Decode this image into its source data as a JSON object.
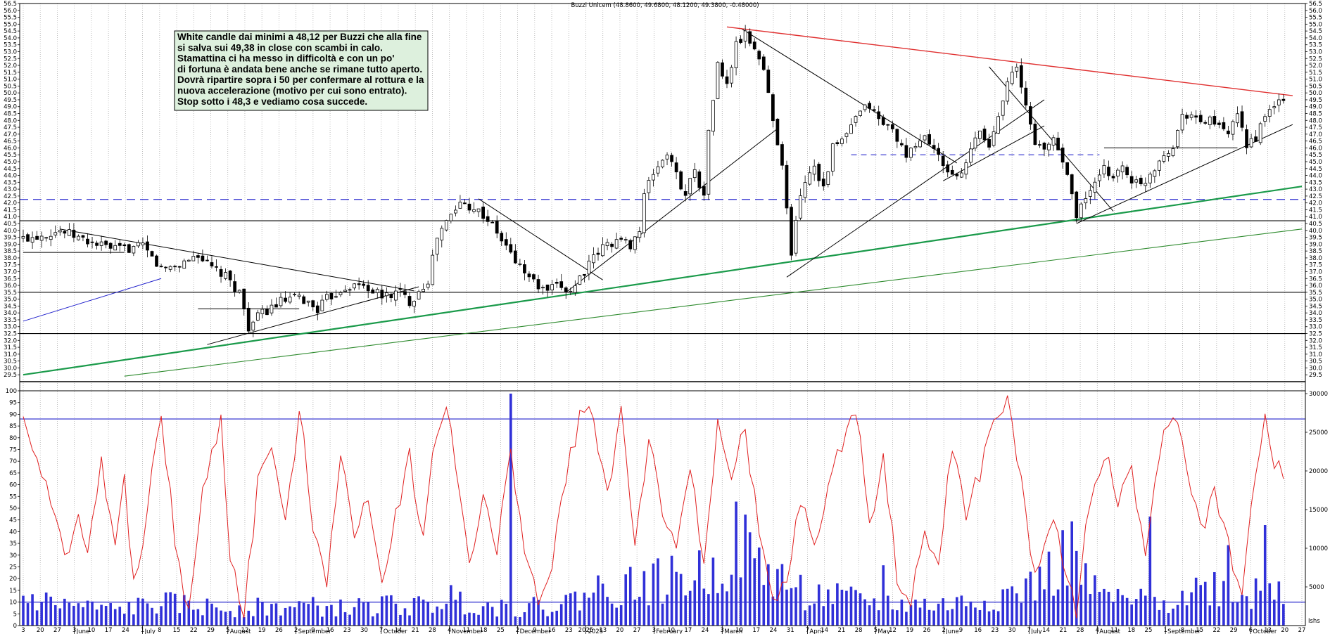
{
  "chart_data": {
    "type": "candlestick",
    "title": "Buzzi Unicem (48.8600, 49.6800, 48.1200, 49.3800, -0.48000)",
    "price_axis": {
      "ylim": [
        29.0,
        56.5
      ],
      "ticks": [
        "29.5",
        "30.0",
        "30.5",
        "31.0",
        "31.5",
        "32.0",
        "32.5",
        "33.0",
        "33.5",
        "34.0",
        "34.5",
        "35.0",
        "35.5",
        "36.0",
        "36.5",
        "37.0",
        "37.5",
        "38.0",
        "38.5",
        "39.0",
        "39.5",
        "40.0",
        "40.5",
        "41.0",
        "41.5",
        "42.0",
        "42.5",
        "43.0",
        "43.5",
        "44.0",
        "44.5",
        "45.0",
        "45.5",
        "46.0",
        "46.5",
        "47.0",
        "47.5",
        "48.0",
        "48.5",
        "49.0",
        "49.5",
        "50.0",
        "50.5",
        "51.0",
        "51.5",
        "52.0",
        "52.5",
        "53.0",
        "53.5",
        "54.0",
        "54.5",
        "55.0",
        "55.5",
        "56.0",
        "56.5"
      ]
    },
    "oscillator_axis": {
      "ylim": [
        0,
        100
      ],
      "ticks": [
        "0",
        "5",
        "10",
        "15",
        "20",
        "25",
        "30",
        "35",
        "40",
        "45",
        "50",
        "55",
        "60",
        "65",
        "70",
        "75",
        "80",
        "85",
        "90",
        "95",
        "100"
      ],
      "levels": [
        10,
        88
      ]
    },
    "volume_axis": {
      "ylim": [
        0,
        30000
      ],
      "ticks": [
        "5000",
        "10000",
        "15000",
        "20000",
        "25000",
        "30000"
      ],
      "unit": "Ishs"
    },
    "x_axis": {
      "day_labels": [
        "3",
        "20",
        "27",
        "3",
        "10",
        "17",
        "24",
        "1",
        "8",
        "15",
        "22",
        "29",
        "5",
        "12",
        "19",
        "26",
        "2",
        "9",
        "16",
        "23",
        "30",
        "7",
        "14",
        "21",
        "28",
        "4",
        "11",
        "18",
        "25",
        "2",
        "9",
        "16",
        "23",
        "2025",
        "13",
        "20",
        "27",
        "3",
        "10",
        "17",
        "24",
        "3",
        "10",
        "17",
        "24",
        "31",
        "7",
        "14",
        "21",
        "28",
        "5",
        "12",
        "19",
        "26",
        "2",
        "9",
        "16",
        "23",
        "30",
        "7",
        "14",
        "21",
        "28",
        "4",
        "11",
        "18",
        "25",
        "1",
        "8",
        "15",
        "22",
        "29",
        "6",
        "13",
        "20",
        "27"
      ],
      "month_labels": [
        "June",
        "July",
        "August",
        "September",
        "October",
        "November",
        "December",
        "2025",
        "February",
        "March",
        "April",
        "May",
        "June",
        "July",
        "August",
        "September",
        "October"
      ]
    },
    "annotation": [
      "White candle dai minimi a 48,12 per Buzzi che alla fine",
      "si salva sui 49,38 in close con scambi in calo.",
      "Stamattina ci ha messo in difficoltà e con un po'",
      "di fortuna è andata bene anche se rimane tutto aperto.",
      "Dovrà ripartire sopra i 50 per confermare al rottura e la",
      "nuova accelerazione (motivo per cui sono entrato).",
      "Stop sotto i 48,3 e vediamo cosa succede."
    ],
    "price_path": [
      [
        0,
        39.4
      ],
      [
        8,
        40.0
      ],
      [
        14,
        39.2
      ],
      [
        20,
        38.6
      ],
      [
        26,
        38.8
      ],
      [
        30,
        37.2
      ],
      [
        34,
        37.5
      ],
      [
        38,
        38.3
      ],
      [
        40,
        37.5
      ],
      [
        44,
        36.6
      ],
      [
        47,
        35.5
      ],
      [
        49,
        33.0
      ],
      [
        52,
        34.0
      ],
      [
        56,
        34.8
      ],
      [
        60,
        35.1
      ],
      [
        64,
        34.3
      ],
      [
        66,
        35.0
      ],
      [
        70,
        35.9
      ],
      [
        74,
        36.0
      ],
      [
        78,
        35.2
      ],
      [
        82,
        35.5
      ],
      [
        84,
        34.8
      ],
      [
        86,
        35.6
      ],
      [
        88,
        36.4
      ],
      [
        90,
        39.5
      ],
      [
        92,
        40.6
      ],
      [
        95,
        42.0
      ],
      [
        98,
        41.7
      ],
      [
        101,
        40.8
      ],
      [
        104,
        39.3
      ],
      [
        107,
        37.8
      ],
      [
        110,
        36.6
      ],
      [
        113,
        35.6
      ],
      [
        117,
        35.9
      ],
      [
        119,
        35.6
      ],
      [
        121,
        36.6
      ],
      [
        123,
        37.5
      ],
      [
        126,
        38.8
      ],
      [
        129,
        39.3
      ],
      [
        132,
        39.0
      ],
      [
        134,
        40.0
      ],
      [
        135,
        42.5
      ],
      [
        137,
        44.2
      ],
      [
        140,
        45.6
      ],
      [
        142,
        44.0
      ],
      [
        144,
        42.6
      ],
      [
        146,
        44.6
      ],
      [
        148,
        42.3
      ],
      [
        149,
        47.3
      ],
      [
        151,
        52.0
      ],
      [
        153,
        50.5
      ],
      [
        155,
        53.5
      ],
      [
        157,
        54.2
      ],
      [
        159,
        53.3
      ],
      [
        161,
        51.7
      ],
      [
        163,
        48.0
      ],
      [
        165,
        45.0
      ],
      [
        167,
        38.0
      ],
      [
        168,
        41.0
      ],
      [
        170,
        43.7
      ],
      [
        172,
        44.8
      ],
      [
        174,
        43.1
      ],
      [
        176,
        46.0
      ],
      [
        178,
        46.5
      ],
      [
        180,
        47.5
      ],
      [
        182,
        48.6
      ],
      [
        184,
        49.1
      ],
      [
        186,
        48.0
      ],
      [
        188,
        47.6
      ],
      [
        190,
        46.8
      ],
      [
        192,
        45.1
      ],
      [
        194,
        46.3
      ],
      [
        196,
        46.8
      ],
      [
        198,
        46.0
      ],
      [
        200,
        44.5
      ],
      [
        202,
        44.2
      ],
      [
        204,
        43.9
      ],
      [
        206,
        45.8
      ],
      [
        208,
        47.3
      ],
      [
        210,
        46.0
      ],
      [
        212,
        48.5
      ],
      [
        214,
        51.0
      ],
      [
        216,
        51.7
      ],
      [
        218,
        49.0
      ],
      [
        220,
        46.5
      ],
      [
        222,
        45.7
      ],
      [
        224,
        46.8
      ],
      [
        226,
        45.0
      ],
      [
        228,
        43.0
      ],
      [
        229,
        40.9
      ],
      [
        231,
        42.5
      ],
      [
        233,
        43.3
      ],
      [
        235,
        44.4
      ],
      [
        237,
        44.0
      ],
      [
        239,
        44.6
      ],
      [
        241,
        43.7
      ],
      [
        243,
        43.2
      ],
      [
        246,
        44.6
      ],
      [
        248,
        45.7
      ],
      [
        250,
        46.0
      ],
      [
        252,
        48.5
      ],
      [
        254,
        48.5
      ],
      [
        256,
        47.7
      ],
      [
        258,
        48.2
      ],
      [
        260,
        47.4
      ],
      [
        262,
        47.0
      ],
      [
        264,
        48.2
      ],
      [
        266,
        46.3
      ],
      [
        268,
        46.8
      ],
      [
        270,
        48.1
      ],
      [
        272,
        49.2
      ],
      [
        274,
        49.38
      ]
    ],
    "oscillator_path": [
      [
        0,
        90
      ],
      [
        3,
        72
      ],
      [
        6,
        50
      ],
      [
        9,
        30
      ],
      [
        12,
        48
      ],
      [
        14,
        28
      ],
      [
        17,
        70
      ],
      [
        20,
        35
      ],
      [
        22,
        60
      ],
      [
        24,
        15
      ],
      [
        27,
        50
      ],
      [
        30,
        90
      ],
      [
        33,
        35
      ],
      [
        36,
        5
      ],
      [
        39,
        55
      ],
      [
        41,
        72
      ],
      [
        43,
        88
      ],
      [
        45,
        30
      ],
      [
        48,
        5
      ],
      [
        51,
        60
      ],
      [
        54,
        78
      ],
      [
        57,
        40
      ],
      [
        60,
        92
      ],
      [
        63,
        45
      ],
      [
        66,
        20
      ],
      [
        69,
        75
      ],
      [
        72,
        35
      ],
      [
        75,
        58
      ],
      [
        78,
        18
      ],
      [
        81,
        48
      ],
      [
        84,
        72
      ],
      [
        87,
        38
      ],
      [
        90,
        85
      ],
      [
        92,
        92
      ],
      [
        94,
        68
      ],
      [
        97,
        28
      ],
      [
        100,
        55
      ],
      [
        103,
        30
      ],
      [
        106,
        75
      ],
      [
        109,
        35
      ],
      [
        112,
        8
      ],
      [
        115,
        25
      ],
      [
        118,
        65
      ],
      [
        121,
        88
      ],
      [
        124,
        90
      ],
      [
        127,
        55
      ],
      [
        130,
        92
      ],
      [
        133,
        35
      ],
      [
        136,
        80
      ],
      [
        139,
        50
      ],
      [
        142,
        28
      ],
      [
        145,
        68
      ],
      [
        148,
        25
      ],
      [
        151,
        90
      ],
      [
        154,
        60
      ],
      [
        157,
        85
      ],
      [
        160,
        38
      ],
      [
        163,
        8
      ],
      [
        166,
        18
      ],
      [
        169,
        55
      ],
      [
        172,
        30
      ],
      [
        175,
        60
      ],
      [
        178,
        78
      ],
      [
        181,
        92
      ],
      [
        184,
        45
      ],
      [
        187,
        70
      ],
      [
        190,
        22
      ],
      [
        193,
        8
      ],
      [
        196,
        40
      ],
      [
        199,
        25
      ],
      [
        202,
        78
      ],
      [
        205,
        45
      ],
      [
        208,
        65
      ],
      [
        211,
        88
      ],
      [
        214,
        95
      ],
      [
        217,
        60
      ],
      [
        220,
        20
      ],
      [
        223,
        45
      ],
      [
        226,
        30
      ],
      [
        229,
        5
      ],
      [
        232,
        55
      ],
      [
        235,
        75
      ],
      [
        238,
        52
      ],
      [
        241,
        68
      ],
      [
        244,
        25
      ],
      [
        247,
        75
      ],
      [
        250,
        90
      ],
      [
        253,
        70
      ],
      [
        256,
        40
      ],
      [
        259,
        55
      ],
      [
        262,
        35
      ],
      [
        265,
        10
      ],
      [
        268,
        65
      ],
      [
        270,
        93
      ],
      [
        272,
        70
      ],
      [
        274,
        65
      ]
    ],
    "volume_path": [
      [
        0,
        3600
      ],
      [
        10,
        2600
      ],
      [
        20,
        2000
      ],
      [
        30,
        2900
      ],
      [
        40,
        2400
      ],
      [
        50,
        2300
      ],
      [
        60,
        2500
      ],
      [
        70,
        2200
      ],
      [
        80,
        2700
      ],
      [
        88,
        2400
      ],
      [
        92,
        3800
      ],
      [
        100,
        2600
      ],
      [
        110,
        2300
      ],
      [
        119,
        3100
      ],
      [
        124,
        4600
      ],
      [
        134,
        5300
      ],
      [
        140,
        5800
      ],
      [
        150,
        6800
      ],
      [
        155,
        11000
      ],
      [
        160,
        7800
      ],
      [
        166,
        5600
      ],
      [
        170,
        4100
      ],
      [
        180,
        3300
      ],
      [
        190,
        2800
      ],
      [
        200,
        2600
      ],
      [
        210,
        3500
      ],
      [
        214,
        4100
      ],
      [
        218,
        4600
      ],
      [
        224,
        6900
      ],
      [
        228,
        9500
      ],
      [
        232,
        4400
      ],
      [
        240,
        2900
      ],
      [
        250,
        3600
      ],
      [
        258,
        5200
      ],
      [
        266,
        3700
      ],
      [
        270,
        5700
      ],
      [
        274,
        4300
      ]
    ],
    "volume_spikes": [
      [
        106,
        30000
      ],
      [
        187,
        7800
      ],
      [
        245,
        14100
      ],
      [
        262,
        10400
      ],
      [
        270,
        13000
      ],
      [
        273,
        5700
      ]
    ]
  }
}
